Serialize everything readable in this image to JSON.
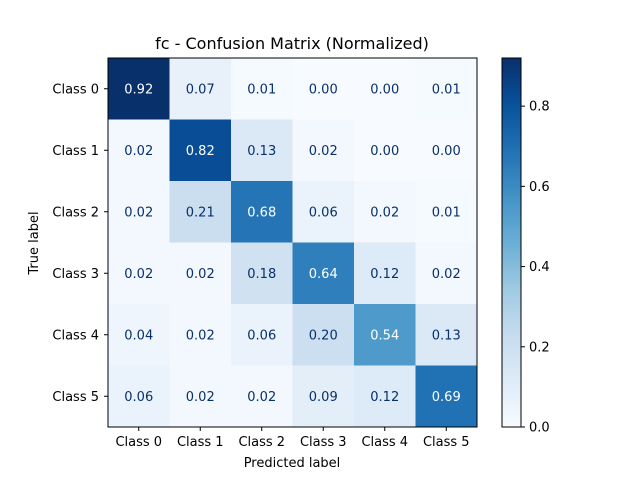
{
  "chart_data": {
    "type": "heatmap",
    "title": "fc - Confusion Matrix (Normalized)",
    "xlabel": "Predicted label",
    "ylabel": "True label",
    "x_categories": [
      "Class 0",
      "Class 1",
      "Class 2",
      "Class 3",
      "Class 4",
      "Class 5"
    ],
    "y_categories": [
      "Class 0",
      "Class 1",
      "Class 2",
      "Class 3",
      "Class 4",
      "Class 5"
    ],
    "values": [
      [
        0.92,
        0.07,
        0.01,
        0.0,
        0.0,
        0.01
      ],
      [
        0.02,
        0.82,
        0.13,
        0.02,
        0.0,
        0.0
      ],
      [
        0.02,
        0.21,
        0.68,
        0.06,
        0.02,
        0.01
      ],
      [
        0.02,
        0.02,
        0.18,
        0.64,
        0.12,
        0.02
      ],
      [
        0.04,
        0.02,
        0.06,
        0.2,
        0.54,
        0.13
      ],
      [
        0.06,
        0.02,
        0.02,
        0.09,
        0.12,
        0.69
      ]
    ],
    "colorbar": {
      "range": [
        0.0,
        0.92
      ],
      "ticks": [
        0.0,
        0.2,
        0.4,
        0.6,
        0.8
      ],
      "tick_labels": [
        "0.0",
        "0.2",
        "0.4",
        "0.6",
        "0.8"
      ],
      "colormap": "Blues"
    },
    "colormap_stops": [
      "#f7fbff",
      "#deebf7",
      "#c6dbef",
      "#9ecae1",
      "#6baed6",
      "#4292c6",
      "#2171b5",
      "#08519c",
      "#08306b"
    ]
  }
}
